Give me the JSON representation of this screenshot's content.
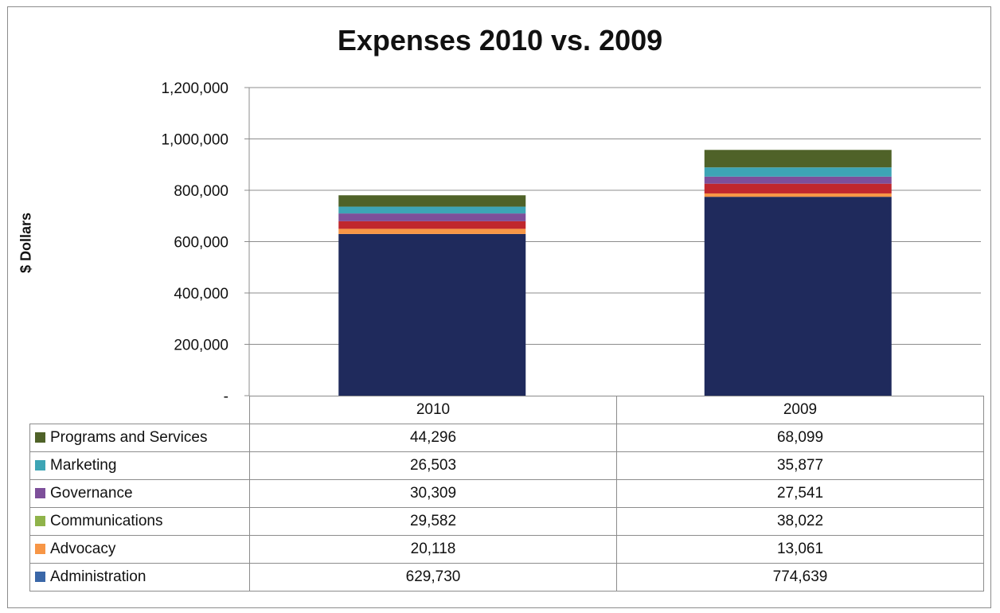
{
  "chart_data": {
    "type": "bar",
    "stacked": true,
    "title": "Expenses 2010 vs. 2009",
    "ylabel": "$ Dollars",
    "xlabel": "",
    "ylim": [
      0,
      1200000
    ],
    "yticks": [
      "-",
      "200,000",
      "400,000",
      "600,000",
      "800,000",
      "1,000,000",
      "1,200,000"
    ],
    "ytick_values": [
      0,
      200000,
      400000,
      600000,
      800000,
      1000000,
      1200000
    ],
    "grid": true,
    "legend_placement": "data-table-below",
    "categories": [
      "2010",
      "2009"
    ],
    "series": [
      {
        "name": "Administration",
        "color": "#1f2a5c",
        "values": [
          629730,
          774639
        ],
        "labels": [
          "629,730",
          "774,639"
        ]
      },
      {
        "name": "Advocacy",
        "color": "#f79646",
        "values": [
          20118,
          13061
        ],
        "labels": [
          "20,118",
          "13,061"
        ]
      },
      {
        "name": "Communications",
        "color": "#c0272d",
        "values": [
          29582,
          38022
        ],
        "labels": [
          "29,582",
          "38,022"
        ]
      },
      {
        "name": "Governance",
        "color": "#7d4f9a",
        "values": [
          30309,
          27541
        ],
        "labels": [
          "30,309",
          "27,541"
        ]
      },
      {
        "name": "Marketing",
        "color": "#3da5b5",
        "values": [
          26503,
          35877
        ],
        "labels": [
          "26,503",
          "35,877"
        ]
      },
      {
        "name": "Programs and Services",
        "color": "#4f6228",
        "values": [
          44296,
          68099
        ],
        "labels": [
          "44,296",
          "68,099"
        ]
      }
    ],
    "legend_swatch_colors": {
      "Programs and Services": "#4f6228",
      "Marketing": "#3da5b5",
      "Governance": "#7d4f9a",
      "Communications": "#8fb34a",
      "Advocacy": "#f79646",
      "Administration": "#3a67a8"
    }
  }
}
